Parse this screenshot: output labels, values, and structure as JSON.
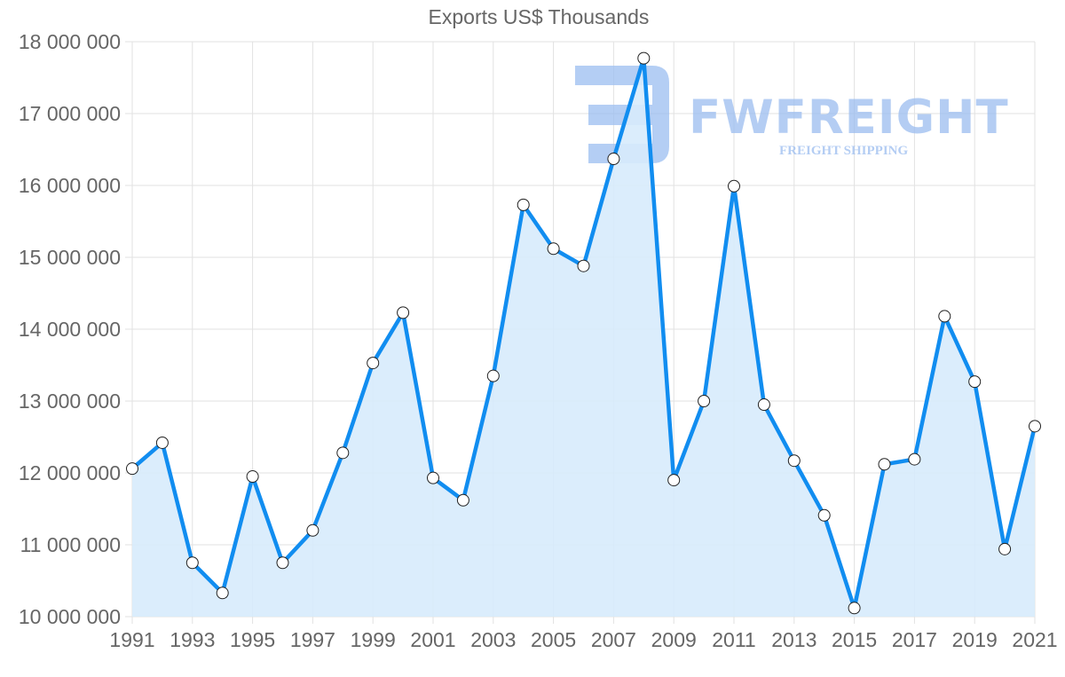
{
  "chart_data": {
    "type": "line",
    "title": "Exports US$ Thousands",
    "xlabel": "",
    "ylabel": "",
    "ylim": [
      10000000,
      18000000
    ],
    "yticks": [
      "10 000 000",
      "11 000 000",
      "12 000 000",
      "13 000 000",
      "14 000 000",
      "15 000 000",
      "16 000 000",
      "17 000 000",
      "18 000 000"
    ],
    "xticks": [
      "1991",
      "1993",
      "1995",
      "1997",
      "1999",
      "2001",
      "2003",
      "2005",
      "2007",
      "2009",
      "2011",
      "2013",
      "2015",
      "2017",
      "2019",
      "2021"
    ],
    "grid": true,
    "legend": "none",
    "fill": true,
    "x": [
      1991,
      1992,
      1993,
      1994,
      1995,
      1996,
      1997,
      1998,
      1999,
      2000,
      2001,
      2002,
      2003,
      2004,
      2005,
      2006,
      2007,
      2008,
      2009,
      2010,
      2011,
      2012,
      2013,
      2014,
      2015,
      2016,
      2017,
      2018,
      2019,
      2020,
      2021
    ],
    "series": [
      {
        "name": "Exports US$ Thousands",
        "color": "#118DF0",
        "fill_color": "#D7EBFC",
        "values": [
          12060000,
          12420000,
          10750000,
          10330000,
          11950000,
          10750000,
          11200000,
          12280000,
          13530000,
          14230000,
          11930000,
          11620000,
          13350000,
          15730000,
          15120000,
          14880000,
          16370000,
          17770000,
          11900000,
          13000000,
          15990000,
          12950000,
          12170000,
          11410000,
          10120000,
          12120000,
          12190000,
          14180000,
          13270000,
          10940000,
          12650000
        ]
      }
    ]
  },
  "watermark": {
    "brand": "FWFREIGHT",
    "tagline": "FREIGHT SHIPPING",
    "color": "#9BBDF0"
  }
}
